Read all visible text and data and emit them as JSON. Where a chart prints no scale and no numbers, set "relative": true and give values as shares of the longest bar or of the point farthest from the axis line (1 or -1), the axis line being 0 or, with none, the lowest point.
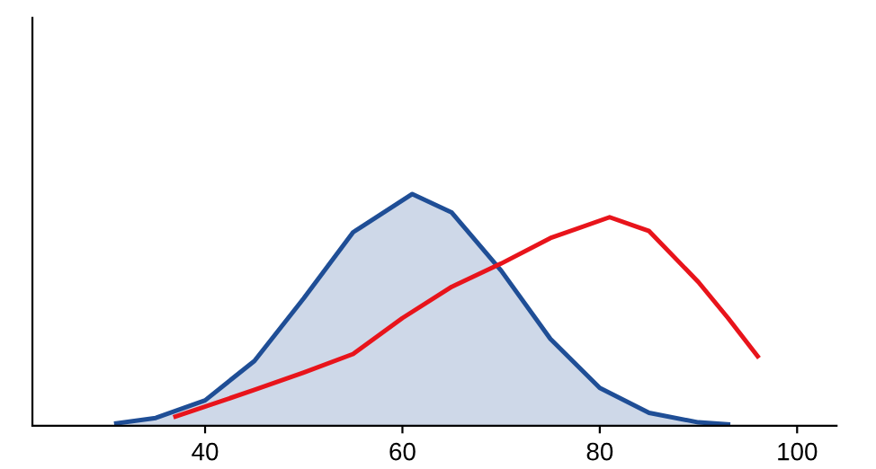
{
  "chart_data": {
    "type": "line",
    "relative": true,
    "xlim": [
      22.5,
      104
    ],
    "xticks": [
      40,
      60,
      80,
      100
    ],
    "grid": false,
    "legend": false,
    "series": [
      {
        "type": "area",
        "color": "#1f4e96",
        "x": [
          31,
          35,
          40,
          45,
          50,
          55,
          61,
          65,
          70,
          75,
          80,
          85,
          90,
          93
        ],
        "values": [
          0.011,
          0.034,
          0.11,
          0.28,
          0.55,
          0.835,
          1,
          0.92,
          0.67,
          0.375,
          0.164,
          0.056,
          0.015,
          0.006
        ]
      },
      {
        "color": "#e8141b",
        "x": [
          37,
          45,
          50,
          55,
          60,
          65,
          70,
          75,
          81,
          85,
          90,
          93,
          96
        ],
        "values": [
          0.04,
          0.155,
          0.23,
          0.31,
          0.465,
          0.6,
          0.7,
          0.81,
          0.9,
          0.84,
          0.62,
          0.465,
          0.3
        ]
      }
    ]
  }
}
